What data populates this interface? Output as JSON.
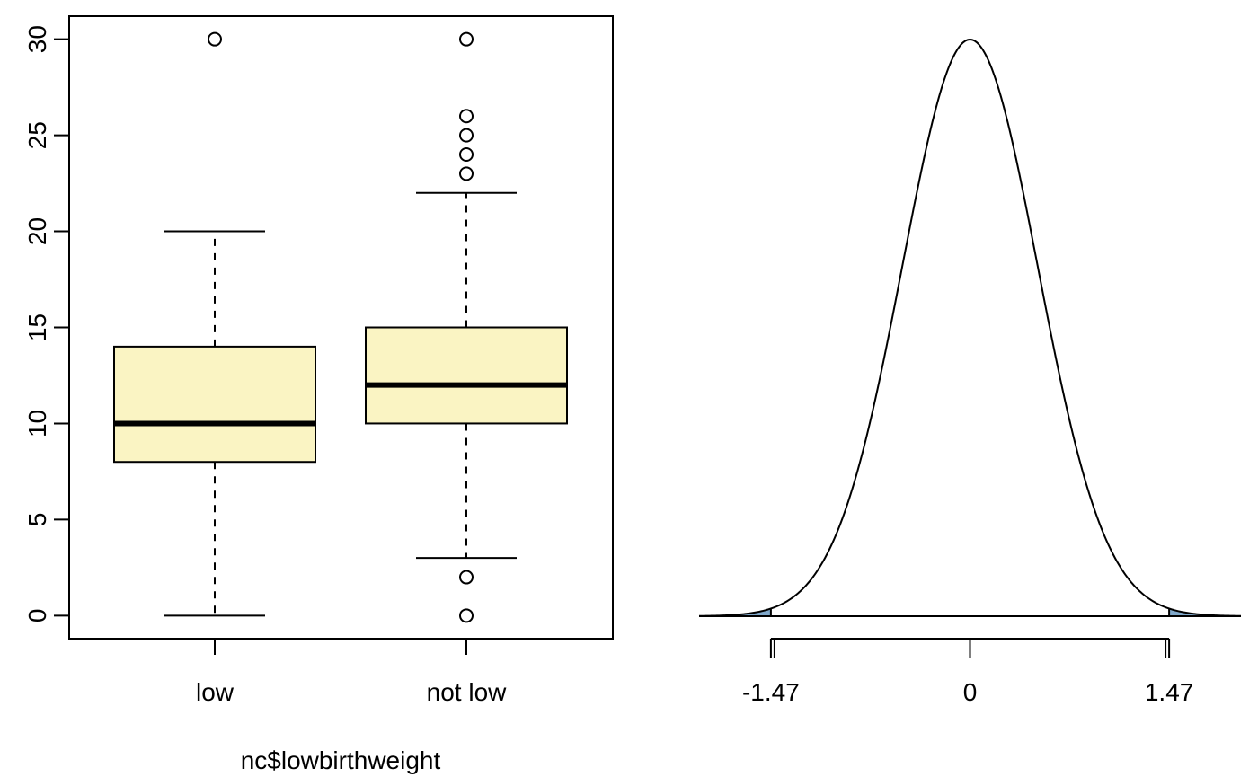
{
  "chart_data": [
    {
      "type": "boxplot",
      "xlabel": "nc$lowbirthweight",
      "ylabel": "",
      "ylim": [
        -1.2,
        31.2
      ],
      "yticks": [
        "0",
        "5",
        "10",
        "15",
        "20",
        "25",
        "30"
      ],
      "ytick_values": [
        0,
        5,
        10,
        15,
        20,
        25,
        30
      ],
      "box_fill": "#FAF4C3",
      "groups": [
        {
          "label": "low",
          "whisker_low": 0,
          "q1": 8,
          "median": 10,
          "q3": 14,
          "whisker_high": 20,
          "outliers": [
            30
          ]
        },
        {
          "label": "not low",
          "whisker_low": 3,
          "q1": 10,
          "median": 12,
          "q3": 15,
          "whisker_high": 22,
          "outliers": [
            30,
            26,
            25,
            24,
            23,
            2,
            0
          ]
        }
      ]
    },
    {
      "type": "area",
      "distribution": "normal",
      "mean": 0,
      "sd": 0.5,
      "xlim": [
        -2,
        2
      ],
      "shade_below": -1.47,
      "shade_above": 1.47,
      "shade_color": "#7FA7C9",
      "xticks": [
        "-1.47",
        "0",
        "1.47"
      ],
      "xtick_values": [
        -1.47,
        0,
        1.47
      ]
    }
  ]
}
